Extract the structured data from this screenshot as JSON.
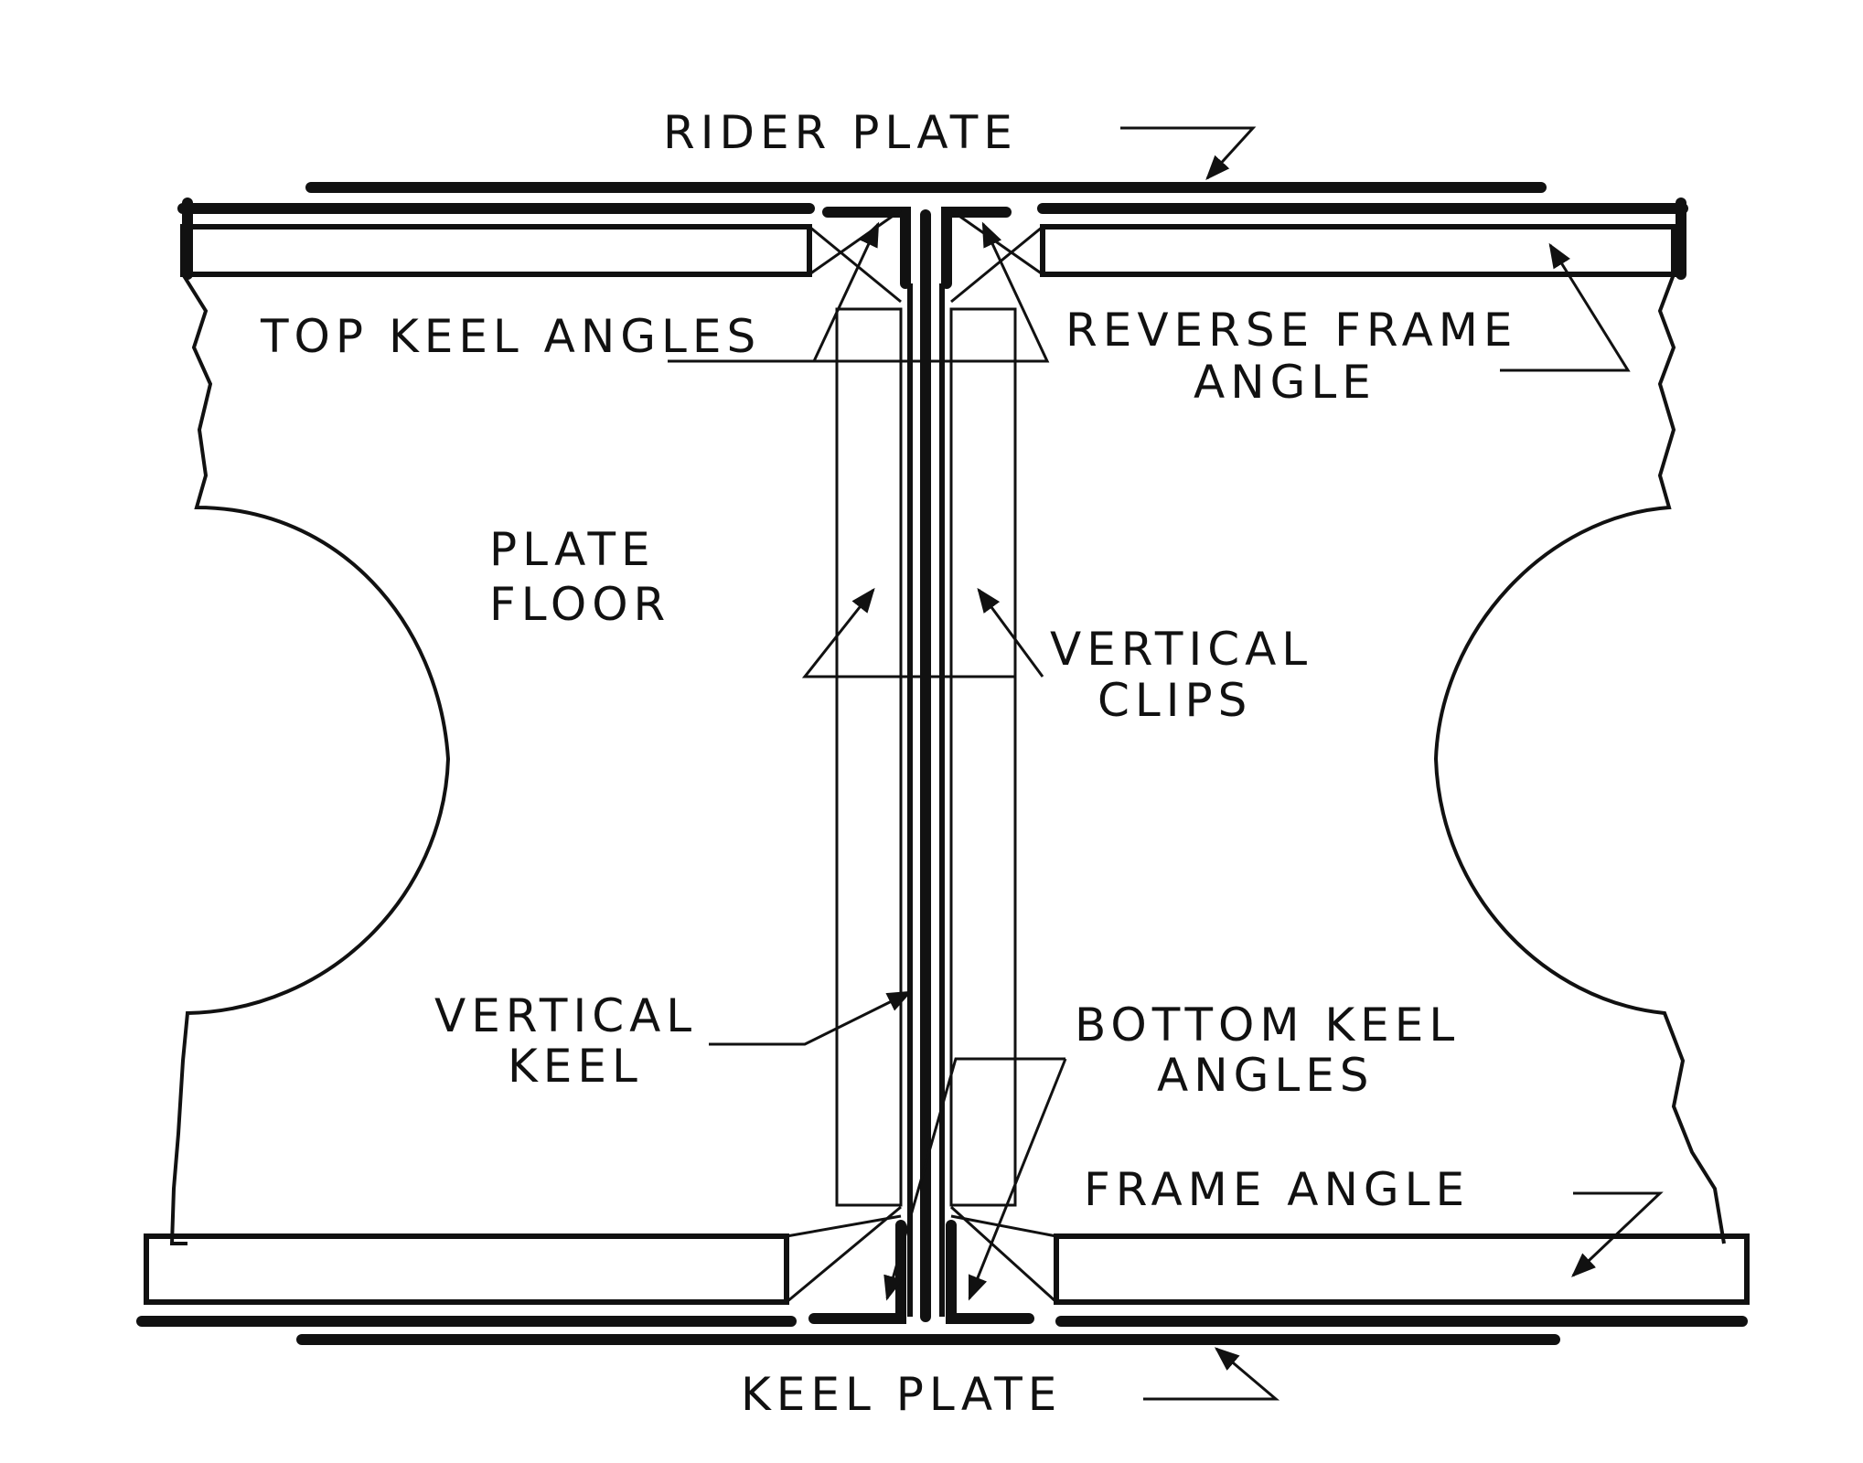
{
  "labels": {
    "rider_plate": "RIDER PLATE",
    "top_keel_angles": "TOP KEEL ANGLES",
    "reverse_frame_angle_1": "REVERSE FRAME",
    "reverse_frame_angle_2": "ANGLE",
    "plate_floor_1": "PLATE",
    "plate_floor_2": "FLOOR",
    "vertical_clips_1": "VERTICAL",
    "vertical_clips_2": "CLIPS",
    "vertical_keel_1": "VERTICAL",
    "vertical_keel_2": "KEEL",
    "bottom_keel_angles_1": "BOTTOM KEEL",
    "bottom_keel_angles_2": "ANGLES",
    "frame_angle": "FRAME ANGLE",
    "keel_plate": "KEEL PLATE"
  },
  "colors": {
    "ink": "#111111",
    "paper": "#ffffff"
  }
}
